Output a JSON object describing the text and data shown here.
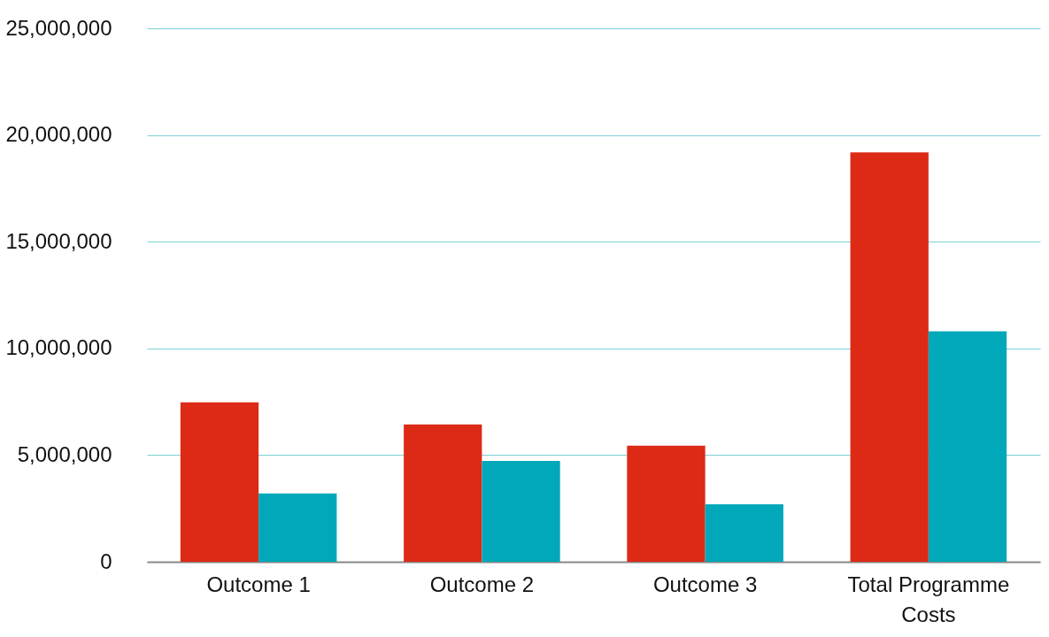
{
  "chart_data": {
    "type": "bar",
    "categories": [
      "Outcome 1",
      "Outcome 2",
      "Outcome 3",
      "Total Programme Costs"
    ],
    "series": [
      {
        "color": "#dd2a16",
        "values": [
          7470000,
          6440000,
          5440000,
          19190000
        ]
      },
      {
        "color": "#00a8b9",
        "values": [
          3200000,
          4730000,
          2700000,
          10800000
        ]
      }
    ],
    "ylim": [
      0,
      25000000
    ],
    "yticks": [
      0,
      {
        "value": 5000000,
        "label": "5,000,000"
      },
      {
        "value": 10000000,
        "label": "10,000,000"
      },
      {
        "value": 15000000,
        "label": "15,000,000"
      },
      {
        "value": 20000000,
        "label": "20,000,000"
      },
      {
        "value": 25000000,
        "label": "25,000,000"
      }
    ],
    "grid": "y",
    "legend": false
  }
}
